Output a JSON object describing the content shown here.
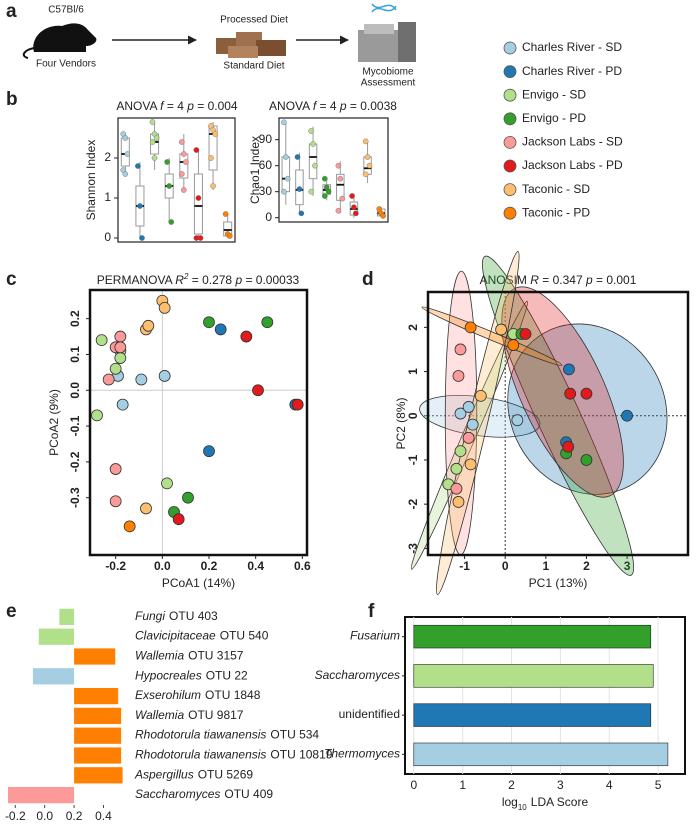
{
  "panel_labels": [
    "a",
    "b",
    "c",
    "d",
    "e",
    "f"
  ],
  "diagram": {
    "mouse_strain": "C57Bl/6",
    "mouse_caption": "Four Vendors",
    "diet_top": "Processed Diet",
    "diet_bottom": "Standard Diet",
    "assessment": [
      "Mycobiome",
      "Assessment"
    ]
  },
  "groups": [
    {
      "name": "Charles River - SD",
      "color": "#a6cee3"
    },
    {
      "name": "Charles River - PD",
      "color": "#1f78b4"
    },
    {
      "name": "Envigo - SD",
      "color": "#b2df8a"
    },
    {
      "name": "Envigo - PD",
      "color": "#33a02c"
    },
    {
      "name": "Jackson Labs - SD",
      "color": "#fb9a99"
    },
    {
      "name": "Jackson Labs - PD",
      "color": "#e31a1c"
    },
    {
      "name": "Taconic - SD",
      "color": "#fdbf6f"
    },
    {
      "name": "Taconic - PD",
      "color": "#ff7f00"
    }
  ],
  "chart_data": [
    {
      "type": "box",
      "title": [
        {
          "text": "ANOVA "
        },
        {
          "text": "f",
          "italic": true
        },
        {
          "text": " = 4 "
        },
        {
          "text": "p",
          "italic": true
        },
        {
          "text": " = 0.004"
        }
      ],
      "ylabel": "Shannon Index",
      "ylim": [
        -0.1,
        3
      ],
      "yticks": [
        0,
        1,
        2
      ],
      "boxes": [
        {
          "low": 1.6,
          "q1": 1.8,
          "median": 2.1,
          "q3": 2.5,
          "high": 2.6,
          "points": [
            2.6,
            2.5,
            2.1,
            1.7,
            1.6
          ]
        },
        {
          "low": 0,
          "q1": 0.3,
          "median": 0.8,
          "q3": 1.3,
          "high": 1.9,
          "points": [
            1.8,
            0.8,
            0
          ]
        },
        {
          "low": 1.7,
          "q1": 2.1,
          "median": 2.4,
          "q3": 2.6,
          "high": 2.9,
          "points": [
            2.9,
            2.6,
            2.5,
            2.4,
            2.0
          ]
        },
        {
          "low": 0.4,
          "q1": 1.0,
          "median": 1.3,
          "q3": 1.6,
          "high": 2.0,
          "points": [
            1.9,
            1.3,
            0.4
          ]
        },
        {
          "low": 1.2,
          "q1": 1.5,
          "median": 1.9,
          "q3": 2.1,
          "high": 2.6,
          "points": [
            2.4,
            2.1,
            1.9,
            1.6,
            1.2
          ]
        },
        {
          "low": 0,
          "q1": 0.1,
          "median": 0.8,
          "q3": 1.6,
          "high": 2.2,
          "points": [
            2.2,
            1.0,
            0,
            0
          ]
        },
        {
          "low": 1.2,
          "q1": 1.7,
          "median": 2.6,
          "q3": 2.8,
          "high": 2.9,
          "points": [
            2.8,
            2.7,
            2.6,
            2.0,
            1.3
          ]
        },
        {
          "low": 0,
          "q1": 0.05,
          "median": 0.2,
          "q3": 0.4,
          "high": 0.6,
          "points": [
            0.6,
            0.1,
            0.05
          ]
        }
      ]
    },
    {
      "type": "box",
      "title": [
        {
          "text": "ANOVA "
        },
        {
          "text": "f",
          "italic": true
        },
        {
          "text": " = 4 "
        },
        {
          "text": "p",
          "italic": true
        },
        {
          "text": " = 0.0038"
        }
      ],
      "ylabel": "Chao1 Index",
      "ylim": [
        -5,
        115
      ],
      "yticks": [
        0,
        30,
        60,
        90
      ],
      "boxes": [
        {
          "low": 15,
          "q1": 30,
          "median": 45,
          "q3": 70,
          "high": 110,
          "points": [
            110,
            70,
            45,
            30
          ]
        },
        {
          "low": 3,
          "q1": 15,
          "median": 32,
          "q3": 55,
          "high": 75,
          "points": [
            70,
            33,
            5
          ]
        },
        {
          "low": 25,
          "q1": 45,
          "median": 70,
          "q3": 85,
          "high": 105,
          "points": [
            100,
            85,
            60,
            30
          ]
        },
        {
          "low": 20,
          "q1": 27,
          "median": 32,
          "q3": 38,
          "high": 45,
          "points": [
            45,
            35,
            30,
            25
          ]
        },
        {
          "low": 5,
          "q1": 20,
          "median": 38,
          "q3": 50,
          "high": 65,
          "points": [
            60,
            45,
            22,
            8
          ]
        },
        {
          "low": 0,
          "q1": 3,
          "median": 10,
          "q3": 18,
          "high": 28,
          "points": [
            25,
            12,
            5
          ]
        },
        {
          "low": 40,
          "q1": 50,
          "median": 57,
          "q3": 70,
          "high": 90,
          "points": [
            88,
            70,
            60,
            50
          ]
        },
        {
          "low": 0,
          "q1": 2,
          "median": 5,
          "q3": 10,
          "high": 12,
          "points": [
            10,
            5,
            2
          ]
        }
      ]
    },
    {
      "type": "scatter",
      "title": [
        {
          "text": "PERMANOVA "
        },
        {
          "text": "R",
          "italic": true
        },
        {
          "text": "2",
          "italic": true,
          "sup": true
        },
        {
          "text": " = 0.278 "
        },
        {
          "text": "p",
          "italic": true
        },
        {
          "text": " = 0.00033"
        }
      ],
      "xlabel": "PCoA1 (14%)",
      "ylabel": "PCoA2 (9%)",
      "xlim": [
        -0.31,
        0.62
      ],
      "ylim": [
        -0.46,
        0.28
      ],
      "xticks": [
        -0.2,
        {
          "value": 0,
          "label": "0.0"
        },
        0.2,
        0.4,
        0.6
      ],
      "yticks": [
        -0.3,
        -0.2,
        -0.1,
        {
          "value": 0,
          "label": "0.0"
        },
        0.1,
        0.2
      ],
      "ref_lines": {
        "x": 0,
        "y": 0,
        "style": "solid"
      },
      "ellipses": false,
      "series": [
        {
          "x": [
            -0.19,
            -0.17,
            -0.09,
            0.01
          ],
          "y": [
            0.04,
            -0.04,
            0.03,
            0.04
          ]
        },
        {
          "x": [
            0.2,
            0.25,
            0.57
          ],
          "y": [
            -0.17,
            0.17,
            -0.04
          ]
        },
        {
          "x": [
            -0.26,
            -0.18,
            -0.18,
            -0.2,
            -0.28,
            0.02
          ],
          "y": [
            0.14,
            0.11,
            0.09,
            0.06,
            -0.07,
            -0.26
          ]
        },
        {
          "x": [
            0.2,
            0.45,
            0.11,
            0.05
          ],
          "y": [
            0.19,
            0.19,
            -0.3,
            -0.34
          ]
        },
        {
          "x": [
            -0.18,
            -0.2,
            -0.18,
            -0.23,
            -0.2,
            -0.2
          ],
          "y": [
            0.15,
            0.12,
            0.12,
            0.03,
            -0.22,
            -0.31
          ]
        },
        {
          "x": [
            0.36,
            0.41,
            0.58,
            0.07
          ],
          "y": [
            0.15,
            0.0,
            -0.04,
            -0.36
          ]
        },
        {
          "x": [
            0.0,
            0.01,
            -0.07,
            -0.06,
            -0.07
          ],
          "y": [
            0.25,
            0.23,
            0.17,
            0.18,
            -0.33
          ]
        },
        {
          "x": [
            -0.14
          ],
          "y": [
            -0.38
          ]
        }
      ]
    },
    {
      "type": "scatter",
      "title": [
        {
          "text": "ANOSIM "
        },
        {
          "text": "R",
          "italic": true
        },
        {
          "text": " = 0.347 "
        },
        {
          "text": "p",
          "italic": true
        },
        {
          "text": " = 0.001"
        }
      ],
      "xlabel": "PC1 (13%)",
      "ylabel": "PC2 (8%)",
      "xlim": [
        -1.9,
        4.5
      ],
      "ylim": [
        -3.15,
        2.8
      ],
      "xticks": [
        -1,
        0,
        1,
        2,
        3
      ],
      "yticks": [
        -3,
        -2,
        -1,
        0,
        1,
        2
      ],
      "ref_lines": {
        "x": 0,
        "y": 0,
        "style": "dashed"
      },
      "ellipses": true,
      "series": [
        {
          "x": [
            -1.1,
            -0.8,
            0.3,
            -0.9
          ],
          "y": [
            0.05,
            -0.2,
            -0.1,
            0.2
          ]
        },
        {
          "x": [
            3.0,
            1.57,
            1.5
          ],
          "y": [
            0.0,
            1.05,
            -0.6
          ]
        },
        {
          "x": [
            0.2,
            -1.1,
            -1.4,
            -1.2,
            -0.9
          ],
          "y": [
            1.85,
            -0.8,
            -1.55,
            -1.2,
            -0.5
          ]
        },
        {
          "x": [
            0.4,
            2.0,
            1.5
          ],
          "y": [
            1.85,
            -1.0,
            -0.85
          ]
        },
        {
          "x": [
            -1.1,
            -1.15,
            -1.2,
            -0.9
          ],
          "y": [
            1.5,
            0.9,
            -1.65,
            -0.5
          ]
        },
        {
          "x": [
            0.5,
            1.6,
            2.0,
            1.55
          ],
          "y": [
            1.85,
            0.5,
            0.5,
            -0.7
          ]
        },
        {
          "x": [
            -0.1,
            -1.15,
            -0.85,
            -0.6
          ],
          "y": [
            1.95,
            -1.95,
            -1.1,
            0.45
          ]
        },
        {
          "x": [
            -0.85,
            0.2
          ],
          "y": [
            2.0,
            1.6
          ]
        }
      ]
    },
    {
      "type": "hbar",
      "origin": 0.2,
      "xlim": [
        -0.27,
        0.56
      ],
      "xticks": [
        -0.2,
        {
          "value": 0,
          "label": "0.0"
        },
        0.2,
        0.4
      ],
      "categories": [
        {
          "italic": "Fungi",
          "plain": "OTU 403"
        },
        {
          "italic": "Clavicipitaceae",
          "plain": "OTU 540"
        },
        {
          "italic": "Wallemia",
          "plain": "OTU 3157"
        },
        {
          "italic": "Hypocreales",
          "plain": "OTU 22"
        },
        {
          "italic": "Exserohilum",
          "plain": "OTU 1848"
        },
        {
          "italic": "Wallemia",
          "plain": "OTU 9817"
        },
        {
          "italic": "Rhodotorula tiawanensis",
          "plain": "OTU 534"
        },
        {
          "italic": "Rhodotorula tiawanensis",
          "plain": "OTU 10819"
        },
        {
          "italic": "Aspergillus",
          "plain": "OTU 5269"
        },
        {
          "italic": "Saccharomyces",
          "plain": "OTU 409"
        }
      ],
      "values": [
        0.1,
        -0.04,
        0.48,
        -0.08,
        0.5,
        0.52,
        0.52,
        0.52,
        0.53,
        -0.25
      ],
      "colors": [
        "#b2df8a",
        "#b2df8a",
        "#ff7f00",
        "#a6cee3",
        "#ff7f00",
        "#ff7f00",
        "#ff7f00",
        "#ff7f00",
        "#ff7f00",
        "#fb9a99"
      ]
    },
    {
      "type": "hbar",
      "xlim": [
        -0.18,
        5.55
      ],
      "xticks": [
        0,
        1,
        2,
        3,
        4,
        5
      ],
      "xlabel": {
        "base": "log",
        "sub": "10",
        "rest": "LDA Score"
      },
      "frame": true,
      "categories": [
        {
          "italic": "Fusarium"
        },
        {
          "italic": "Saccharomyces"
        },
        {
          "plain": "unidentified"
        },
        {
          "italic": "Thermomyces"
        }
      ],
      "values": [
        4.85,
        4.9,
        4.85,
        5.2
      ],
      "colors": [
        "#33a02c",
        "#b2df8a",
        "#1f78b4",
        "#a6cee3"
      ]
    }
  ]
}
